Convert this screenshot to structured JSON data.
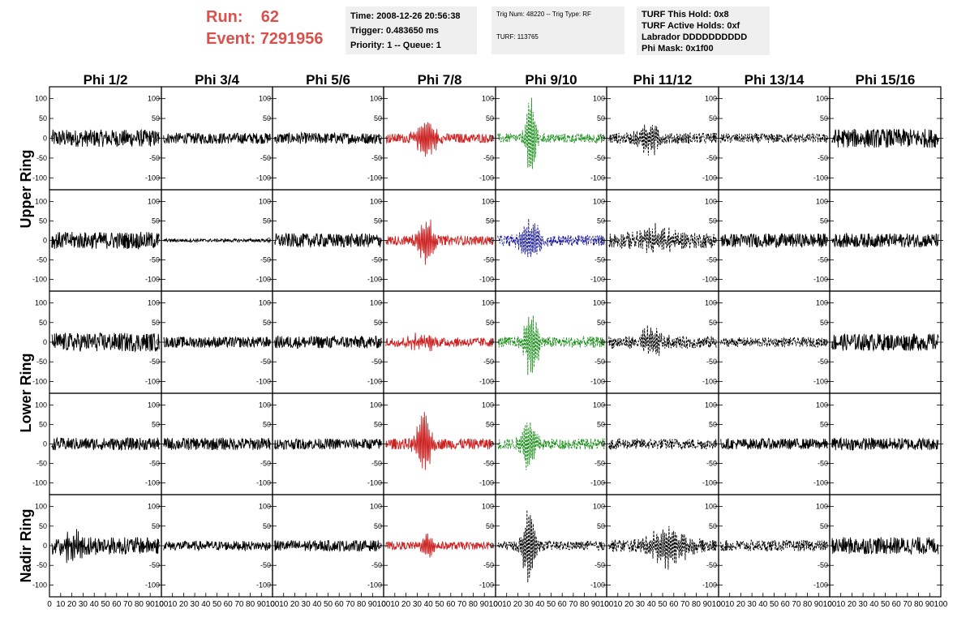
{
  "header": {
    "run_label": "Run:",
    "run_value": "62",
    "event_label": "Event:",
    "event_value": "7291956",
    "time": "Time: 2008-12-26 20:56:38",
    "trigger": "Trigger: 0.483650 ms",
    "priority": "Priority: 1 -- Queue: 1",
    "trig_num": "Trig Num: 48220 -- Trig Type: RF",
    "turf": "TURF: 113765",
    "turf_hold": "TURF This Hold: 0x8",
    "turf_active": "TURF Active Holds: 0xf",
    "labrador": "Labrador DDDDDDDDDD",
    "phi_mask": "Phi Mask: 0x1f00"
  },
  "colors": {
    "run_text": "#d8514d",
    "box_bg": "#efefef",
    "black": "#000000",
    "red": "#cc2222",
    "green": "#1a8f1a",
    "blue": "#1a1a99"
  },
  "chart_data": {
    "type": "line",
    "columns": [
      "Phi 1/2",
      "Phi 3/4",
      "Phi 5/6",
      "Phi 7/8",
      "Phi 9/10",
      "Phi 11/12",
      "Phi 13/14",
      "Phi 15/16"
    ],
    "rows": [
      "Upper Ring",
      "Lower Ring",
      "Nadir Ring"
    ],
    "y_ticks": [
      100,
      50,
      0,
      -50,
      -100
    ],
    "x_ticks": [
      0,
      10,
      20,
      30,
      40,
      50,
      60,
      70,
      80,
      90,
      100
    ],
    "x_range": [
      0,
      100
    ],
    "y_range": [
      -130,
      130
    ],
    "panels": [
      [
        {
          "style": "black",
          "amp": 22,
          "burst": null
        },
        {
          "style": "black",
          "amp": 14,
          "burst": null
        },
        {
          "style": "black",
          "amp": 14,
          "burst": null
        },
        {
          "style": "red",
          "amp": 12,
          "burst": {
            "center": 38,
            "amp": 55,
            "width": 9
          }
        },
        {
          "style": "green",
          "amp": 12,
          "burst": {
            "center": 32,
            "amp": 120,
            "width": 5
          }
        },
        {
          "style": "black-dashed",
          "amp": 14,
          "burst": {
            "center": 38,
            "amp": 42,
            "width": 10
          }
        },
        {
          "style": "black-dashed",
          "amp": 12,
          "burst": null
        },
        {
          "style": "black",
          "amp": 24,
          "burst": null
        }
      ],
      [
        {
          "style": "black",
          "amp": 22,
          "burst": null
        },
        {
          "style": "black",
          "amp": 4,
          "burst": null
        },
        {
          "style": "black",
          "amp": 18,
          "burst": null
        },
        {
          "style": "red",
          "amp": 12,
          "burst": {
            "center": 38,
            "amp": 60,
            "width": 8
          }
        },
        {
          "style": "blue",
          "amp": 14,
          "burst": {
            "center": 32,
            "amp": 55,
            "width": 10
          }
        },
        {
          "style": "black-dashed",
          "amp": 20,
          "burst": {
            "center": 45,
            "amp": 30,
            "width": 18
          }
        },
        {
          "style": "black",
          "amp": 18,
          "burst": null
        },
        {
          "style": "black",
          "amp": 18,
          "burst": null
        }
      ],
      [
        {
          "style": "black",
          "amp": 24,
          "burst": null
        },
        {
          "style": "black",
          "amp": 14,
          "burst": null
        },
        {
          "style": "black",
          "amp": 16,
          "burst": null
        },
        {
          "style": "red",
          "amp": 12,
          "burst": {
            "center": 35,
            "amp": 22,
            "width": 12
          }
        },
        {
          "style": "green",
          "amp": 14,
          "burst": {
            "center": 32,
            "amp": 90,
            "width": 7
          }
        },
        {
          "style": "black-dashed",
          "amp": 16,
          "burst": {
            "center": 40,
            "amp": 40,
            "width": 10
          }
        },
        {
          "style": "black-dashed",
          "amp": 12,
          "burst": null
        },
        {
          "style": "black",
          "amp": 22,
          "burst": null
        }
      ],
      [
        {
          "style": "black",
          "amp": 16,
          "burst": null
        },
        {
          "style": "black",
          "amp": 16,
          "burst": null
        },
        {
          "style": "black",
          "amp": 14,
          "burst": null
        },
        {
          "style": "red",
          "amp": 14,
          "burst": {
            "center": 36,
            "amp": 85,
            "width": 7
          }
        },
        {
          "style": "green",
          "amp": 14,
          "burst": {
            "center": 30,
            "amp": 80,
            "width": 7
          }
        },
        {
          "style": "black-dashed",
          "amp": 14,
          "burst": null
        },
        {
          "style": "black",
          "amp": 14,
          "burst": null
        },
        {
          "style": "black",
          "amp": 16,
          "burst": null
        }
      ],
      [
        {
          "style": "black",
          "amp": 22,
          "burst": {
            "center": 20,
            "amp": 30,
            "width": 14
          }
        },
        {
          "style": "black",
          "amp": 12,
          "burst": null
        },
        {
          "style": "black",
          "amp": 14,
          "burst": null
        },
        {
          "style": "red",
          "amp": 10,
          "burst": {
            "center": 40,
            "amp": 35,
            "width": 6
          }
        },
        {
          "style": "black-dashed",
          "amp": 12,
          "burst": {
            "center": 30,
            "amp": 110,
            "width": 6
          }
        },
        {
          "style": "black-dashed",
          "amp": 16,
          "burst": {
            "center": 55,
            "amp": 50,
            "width": 18
          }
        },
        {
          "style": "black-dashed",
          "amp": 14,
          "burst": null
        },
        {
          "style": "black",
          "amp": 22,
          "burst": null
        }
      ]
    ]
  }
}
